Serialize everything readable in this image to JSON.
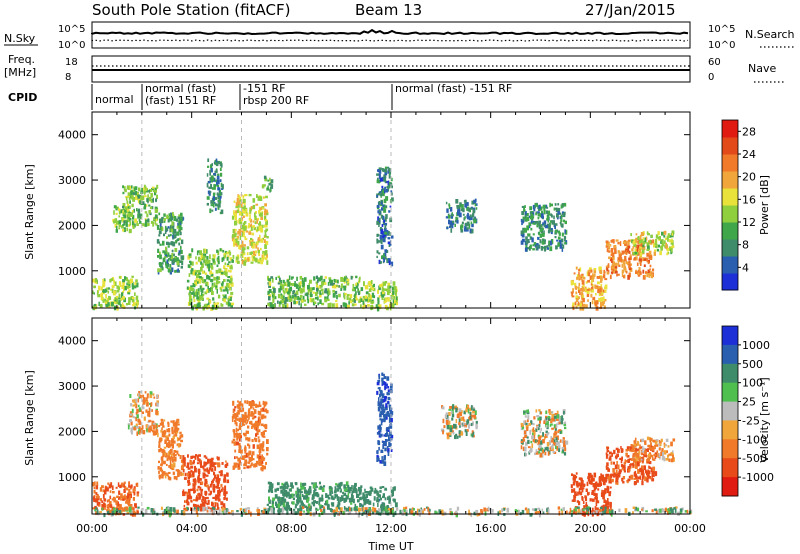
{
  "header": {
    "station": "South Pole Station (fitACF)",
    "beam": "Beam 13",
    "date": "27/Jan/2015"
  },
  "nsky_panel": {
    "label": "N.Sky",
    "left_ticks": [
      "10^5",
      "10^0"
    ],
    "right_ticks": [
      "10^5",
      "10^0"
    ],
    "right_label": "N.Search"
  },
  "freq_panel": {
    "label_line1": "Freq.",
    "label_line2": "[MHz]",
    "left_ticks": [
      "18",
      "8"
    ],
    "right_ticks": [
      "60",
      "0"
    ],
    "right_label": "Nave"
  },
  "cpid": {
    "label": "CPID",
    "segments": [
      {
        "start_h": 0.0,
        "lines": [
          "normal"
        ]
      },
      {
        "start_h": 2.0,
        "lines": [
          "normal (fast)",
          "(fast) 151 RF"
        ]
      },
      {
        "start_h": 6.0,
        "lines": [
          "-151 RF",
          "rbsp 200 RF"
        ]
      },
      {
        "start_h": 12.0,
        "lines": [
          "normal (fast) -151 RF"
        ]
      }
    ]
  },
  "chart_data": [
    {
      "type": "heatmap",
      "title": "",
      "xlabel": "",
      "ylabel": "Slant Range [km]",
      "xlim_hours": [
        0,
        24
      ],
      "ylim": [
        180,
        4500
      ],
      "yticks": [
        1000,
        2000,
        3000,
        4000
      ],
      "colorbar": {
        "label": "Power [dB]",
        "range": [
          0,
          30
        ],
        "ticks": [
          "4",
          "8",
          "12",
          "16",
          "20",
          "24",
          "28"
        ]
      },
      "colors": [
        "#1d2fd6",
        "#2a5fb0",
        "#3f8c6a",
        "#3fa64a",
        "#8fce3c",
        "#e8e23a",
        "#f0a63a",
        "#f07a2a",
        "#e24a1a",
        "#e01c12"
      ],
      "regions_hours_km": [
        [
          0.0,
          1.8,
          200,
          900,
          14
        ],
        [
          0.8,
          1.5,
          1900,
          2500,
          13
        ],
        [
          1.2,
          2.6,
          2000,
          2900,
          12
        ],
        [
          2.6,
          3.6,
          1000,
          2300,
          9
        ],
        [
          3.8,
          5.6,
          200,
          1500,
          13
        ],
        [
          4.6,
          5.2,
          2300,
          3500,
          8
        ],
        [
          5.6,
          7.0,
          1200,
          2700,
          16
        ],
        [
          6.8,
          7.2,
          2800,
          3100,
          11
        ],
        [
          7.0,
          10.8,
          250,
          900,
          12
        ],
        [
          10.8,
          12.2,
          200,
          800,
          14
        ],
        [
          11.4,
          12.0,
          1200,
          3300,
          6
        ],
        [
          14.2,
          15.4,
          1900,
          2600,
          7
        ],
        [
          17.2,
          19.0,
          1500,
          2500,
          8
        ],
        [
          19.2,
          20.6,
          200,
          1100,
          20
        ],
        [
          20.6,
          22.5,
          900,
          1700,
          22
        ],
        [
          21.6,
          23.3,
          1400,
          1900,
          15
        ]
      ]
    },
    {
      "type": "heatmap",
      "title": "",
      "xlabel": "Time UT",
      "ylabel": "Slant Range [km]",
      "xlim_hours": [
        0,
        24
      ],
      "ylim": [
        180,
        4500
      ],
      "yticks": [
        1000,
        2000,
        3000,
        4000
      ],
      "xticks": [
        "00:00",
        "04:00",
        "08:00",
        "12:00",
        "16:00",
        "20:00",
        "00:00"
      ],
      "colorbar": {
        "label": "Velocity [m s⁻¹]",
        "range": [
          -1200,
          1200
        ],
        "ticks": [
          "1000",
          "500",
          "100",
          "25",
          "-25",
          "-100",
          "-500",
          "-1000"
        ]
      },
      "colors": [
        "#1d2fd6",
        "#2a5fb0",
        "#3f8c6a",
        "#4fbf4f",
        "#bcbcbc",
        "#f0a63a",
        "#f07a2a",
        "#e84a1a",
        "#e01c12"
      ],
      "regions_hours_km": [
        [
          0.0,
          1.8,
          200,
          900,
          -300
        ],
        [
          1.4,
          2.6,
          2000,
          2900,
          -60
        ],
        [
          2.6,
          3.6,
          1000,
          2300,
          -150
        ],
        [
          3.6,
          5.4,
          300,
          1500,
          -400
        ],
        [
          5.6,
          7.0,
          1200,
          2700,
          -200
        ],
        [
          7.0,
          10.8,
          300,
          900,
          150
        ],
        [
          10.8,
          12.2,
          200,
          800,
          200
        ],
        [
          11.4,
          12.0,
          1300,
          3300,
          700
        ],
        [
          14.0,
          15.4,
          1900,
          2600,
          0
        ],
        [
          17.2,
          19.0,
          1500,
          2500,
          -10
        ],
        [
          19.2,
          20.8,
          200,
          1100,
          -600
        ],
        [
          20.6,
          22.6,
          900,
          1700,
          -350
        ],
        [
          21.6,
          23.3,
          1400,
          1900,
          -120
        ],
        [
          0.0,
          24.0,
          200,
          350,
          10
        ]
      ]
    }
  ]
}
